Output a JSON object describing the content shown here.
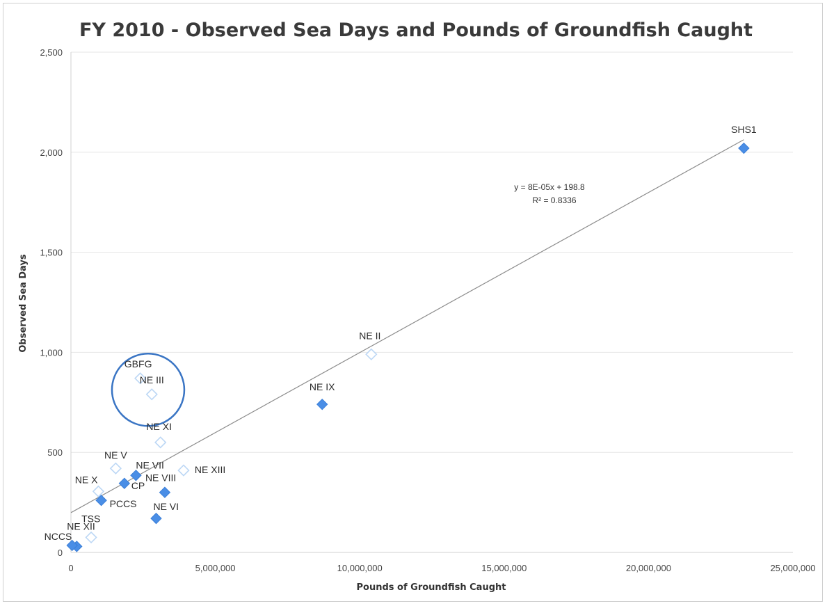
{
  "colors": {
    "filled_marker": "#4a8ee6",
    "hollow_marker": "#bcd7f5",
    "trendline": "#8c8c8c",
    "gridline": "#e6e6e6",
    "highlight_circle": "#3a75c4"
  },
  "chart_data": {
    "type": "scatter",
    "title": "FY 2010 - Observed Sea Days and Pounds of Groundfish Caught",
    "xlabel": "Pounds of Groundfish Caught",
    "ylabel": "Observed Sea Days",
    "xlim": [
      0,
      25000000
    ],
    "ylim": [
      0,
      2500
    ],
    "x_ticks": [
      0,
      5000000,
      10000000,
      15000000,
      20000000,
      25000000
    ],
    "x_tick_labels": [
      "0",
      "5,000,000",
      "10,000,000",
      "15,000,000",
      "20,000,000",
      "25,000,000"
    ],
    "y_ticks": [
      0,
      500,
      1000,
      1500,
      2000,
      2500
    ],
    "y_tick_labels": [
      "0",
      "500",
      "1,000",
      "1,500",
      "2,000",
      "2,500"
    ],
    "grid": "horizontal",
    "legend": "none",
    "points": [
      {
        "label": "SHS1",
        "x": 23300000,
        "y": 2020,
        "style": "filled"
      },
      {
        "label": "NE II",
        "x": 10400000,
        "y": 990,
        "style": "hollow"
      },
      {
        "label": "NE IX",
        "x": 8700000,
        "y": 740,
        "style": "filled"
      },
      {
        "label": "GBFG",
        "x": 2400000,
        "y": 870,
        "style": "hollow"
      },
      {
        "label": "NE III",
        "x": 2800000,
        "y": 790,
        "style": "hollow"
      },
      {
        "label": "NE XI",
        "x": 3100000,
        "y": 550,
        "style": "hollow"
      },
      {
        "label": "NE XIII",
        "x": 3900000,
        "y": 410,
        "style": "hollow"
      },
      {
        "label": "NE V",
        "x": 1550000,
        "y": 420,
        "style": "hollow"
      },
      {
        "label": "NE VII",
        "x": 2250000,
        "y": 385,
        "style": "filled"
      },
      {
        "label": "CP",
        "x": 1850000,
        "y": 345,
        "style": "filled"
      },
      {
        "label": "NE VIII",
        "x": 3250000,
        "y": 300,
        "style": "filled"
      },
      {
        "label": "NE X",
        "x": 950000,
        "y": 305,
        "style": "hollow"
      },
      {
        "label": "PCCS",
        "x": 1050000,
        "y": 260,
        "style": "filled"
      },
      {
        "label": "NE VI",
        "x": 2950000,
        "y": 170,
        "style": "filled"
      },
      {
        "label": "TSS",
        "x": 700000,
        "y": 75,
        "style": "hollow"
      },
      {
        "label": "NE XII",
        "x": 200000,
        "y": 30,
        "style": "filled"
      },
      {
        "label": "NCCS",
        "x": 40000,
        "y": 35,
        "style": "filled"
      }
    ],
    "trendline": {
      "type": "linear",
      "slope": 8e-05,
      "intercept": 198.8,
      "equation": "y = 8E-05x + 198.8",
      "r_squared": "R² = 0.8336"
    },
    "annotations": [
      {
        "type": "circle",
        "around": [
          "GBFG",
          "NE III"
        ]
      }
    ]
  }
}
